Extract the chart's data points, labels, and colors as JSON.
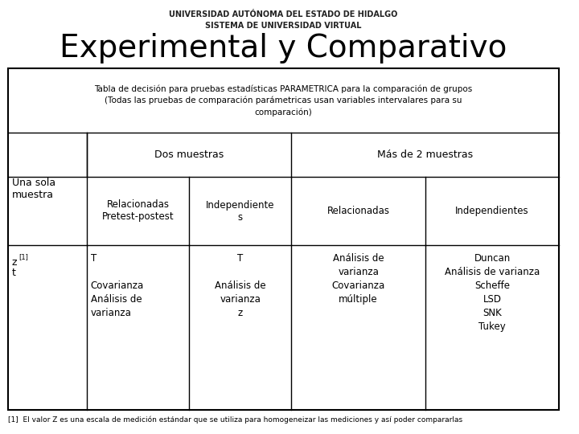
{
  "title": "Experimental y Comparativo",
  "title_fontsize": 28,
  "header_text": "Tabla de decisión para pruebas estadísticas PARAMETRICA para la comparación de grupos\n(Todas las pruebas de comparación parámetricas usan variables intervalares para su\ncomparación)",
  "col1_header": "Una sola\nmuestra",
  "col23_header": "Dos muestras",
  "col45_header": "Más de 2 muestras",
  "col2_subheader": "Relacionadas\nPretest-postest",
  "col3_subheader": "Independiente\ns",
  "col4_subheader": "Relacionadas",
  "col5_subheader": "Independientes",
  "col1_data": "z[1]\nt",
  "col2_data": "T\n\nCovarianza\nAnálisis de\nvarianza",
  "col3_data": "T\n\nAnálisis de\nvarianza\nz",
  "col4_data": "Análisis de\nvarianza\nCovarianza\nmúltiple",
  "col5_data": "Duncan\nAnálisis de varianza\nScheffe\nLSD\nSNK\nTukey",
  "footnote": "[1]  El valor Z es una escala de medición estándar que se utiliza para homogeneizar las mediciones y así poder compararlas",
  "bg_color": "#ffffff",
  "line_color": "#000000",
  "text_color": "#000000",
  "header_bg": "#ffffff",
  "table_border_color": "#000000"
}
